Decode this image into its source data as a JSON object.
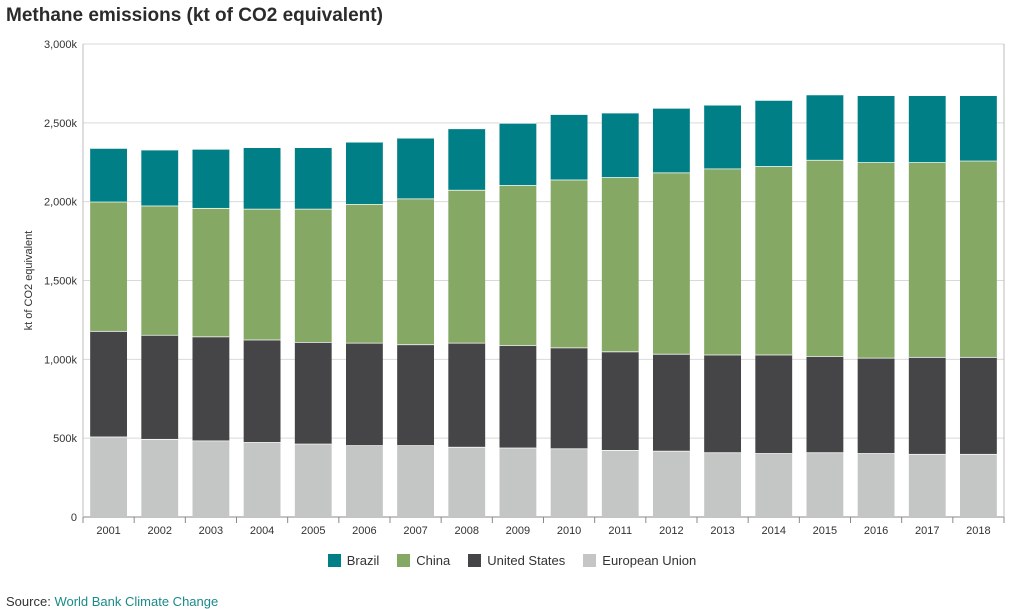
{
  "page_title": "Methane emissions (kt of CO2 equivalent)",
  "source": {
    "label": "Source:",
    "link_text": "World Bank Climate Change"
  },
  "chart_data": {
    "type": "bar",
    "stacked": true,
    "title": "Methane emissions (kt of CO2 equivalent)",
    "xlabel": "",
    "ylabel": "kt of CO2 equivalent",
    "ylim": [
      0,
      3000000
    ],
    "yticks": [
      0,
      500000,
      1000000,
      1500000,
      2000000,
      2500000,
      3000000
    ],
    "ytick_labels": [
      "0",
      "500k",
      "1,000k",
      "1,500k",
      "2,000k",
      "2,500k",
      "3,000k"
    ],
    "grid": "horizontal",
    "legend_position": "bottom",
    "categories": [
      "2001",
      "2002",
      "2003",
      "2004",
      "2005",
      "2006",
      "2007",
      "2008",
      "2009",
      "2010",
      "2011",
      "2012",
      "2013",
      "2014",
      "2015",
      "2016",
      "2017",
      "2018"
    ],
    "series": [
      {
        "name": "European Union",
        "color": "#c4c6c6",
        "values": [
          510000,
          495000,
          485000,
          475000,
          465000,
          455000,
          455000,
          445000,
          440000,
          435000,
          425000,
          420000,
          410000,
          405000,
          410000,
          405000,
          400000,
          400000
        ]
      },
      {
        "name": "United States",
        "color": "#454547",
        "values": [
          670000,
          660000,
          660000,
          650000,
          645000,
          650000,
          640000,
          660000,
          650000,
          640000,
          625000,
          615000,
          620000,
          625000,
          610000,
          605000,
          615000,
          615000
        ]
      },
      {
        "name": "China",
        "color": "#85a865",
        "values": [
          820000,
          820000,
          815000,
          830000,
          845000,
          880000,
          925000,
          970000,
          1015000,
          1065000,
          1105000,
          1150000,
          1180000,
          1195000,
          1245000,
          1240000,
          1235000,
          1245000
        ]
      },
      {
        "name": "Brazil",
        "color": "#007f86",
        "values": [
          340000,
          355000,
          375000,
          390000,
          390000,
          395000,
          385000,
          390000,
          395000,
          415000,
          410000,
          410000,
          405000,
          420000,
          415000,
          425000,
          425000,
          415000
        ]
      }
    ],
    "legend_order": [
      "Brazil",
      "China",
      "United States",
      "European Union"
    ]
  }
}
